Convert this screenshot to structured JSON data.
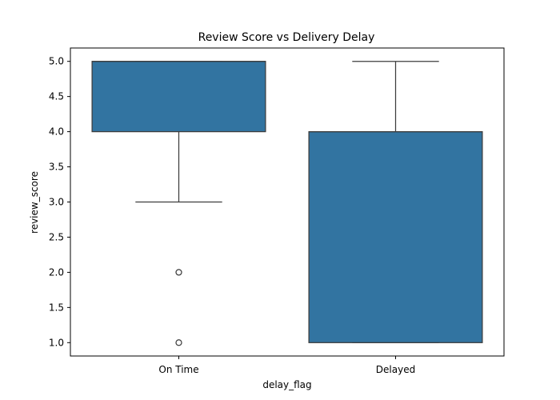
{
  "chart_data": {
    "type": "box",
    "title": "Review Score vs Delivery Delay",
    "xlabel": "delay_flag",
    "ylabel": "review_score",
    "categories": [
      "On Time",
      "Delayed"
    ],
    "ylim": [
      0.81,
      5.19
    ],
    "yticks": [
      1.0,
      1.5,
      2.0,
      2.5,
      3.0,
      3.5,
      4.0,
      4.5,
      5.0
    ],
    "ytick_labels": [
      "1.0",
      "1.5",
      "2.0",
      "2.5",
      "3.0",
      "3.5",
      "4.0",
      "4.5",
      "5.0"
    ],
    "boxes": [
      {
        "category": "On Time",
        "whisker_low": 3.0,
        "q1": 4.0,
        "median": 5.0,
        "q3": 5.0,
        "whisker_high": 5.0,
        "outliers": [
          2.0,
          1.0
        ]
      },
      {
        "category": "Delayed",
        "whisker_low": 1.0,
        "q1": 1.0,
        "median": 4.0,
        "q3": 4.0,
        "whisker_high": 5.0,
        "outliers": []
      }
    ],
    "colors": {
      "box_fill": "#3274a1",
      "line": "#3d3d3d"
    },
    "grid": false,
    "legend": "none"
  }
}
